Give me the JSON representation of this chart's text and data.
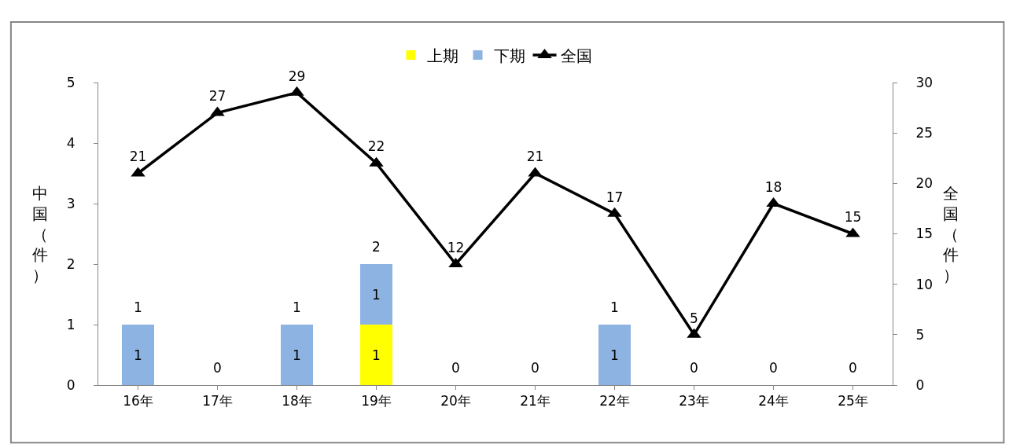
{
  "chart_data": {
    "type": "bar",
    "stacked": true,
    "categories": [
      "16年",
      "17年",
      "18年",
      "19年",
      "20年",
      "21年",
      "22年",
      "23年",
      "24年",
      "25年"
    ],
    "series": [
      {
        "name": "上期",
        "color": "#ffff00",
        "values": [
          0,
          0,
          0,
          1,
          0,
          0,
          0,
          0,
          0,
          0
        ],
        "value_labels": [
          null,
          null,
          null,
          "1",
          null,
          null,
          null,
          null,
          null,
          null
        ]
      },
      {
        "name": "下期",
        "color": "#8db3e2",
        "values": [
          1,
          0,
          1,
          1,
          0,
          0,
          1,
          0,
          0,
          0
        ],
        "value_labels": [
          "1",
          null,
          "1",
          "1",
          null,
          null,
          "1",
          null,
          null,
          null
        ]
      },
      {
        "name": "全国",
        "type": "line",
        "axis": "y2",
        "color": "#000000",
        "marker": "triangle",
        "values": [
          21,
          27,
          29,
          22,
          12,
          21,
          17,
          5,
          18,
          15
        ],
        "value_labels": [
          "21",
          "27",
          "29",
          "22",
          "12",
          "21",
          "17",
          "5",
          "18",
          "15"
        ]
      }
    ],
    "totals": [
      "1",
      "0",
      "1",
      "2",
      "0",
      "0",
      "1",
      "0",
      "0",
      "0"
    ],
    "ylabel": "中国（件）",
    "y2label": "全国（件）",
    "ylim": [
      0,
      5
    ],
    "yticks": [
      0,
      1,
      2,
      3,
      4,
      5
    ],
    "y2lim": [
      0,
      30
    ],
    "y2ticks": [
      0,
      5,
      10,
      15,
      20,
      25,
      30
    ],
    "grid": false,
    "legend": "top"
  }
}
